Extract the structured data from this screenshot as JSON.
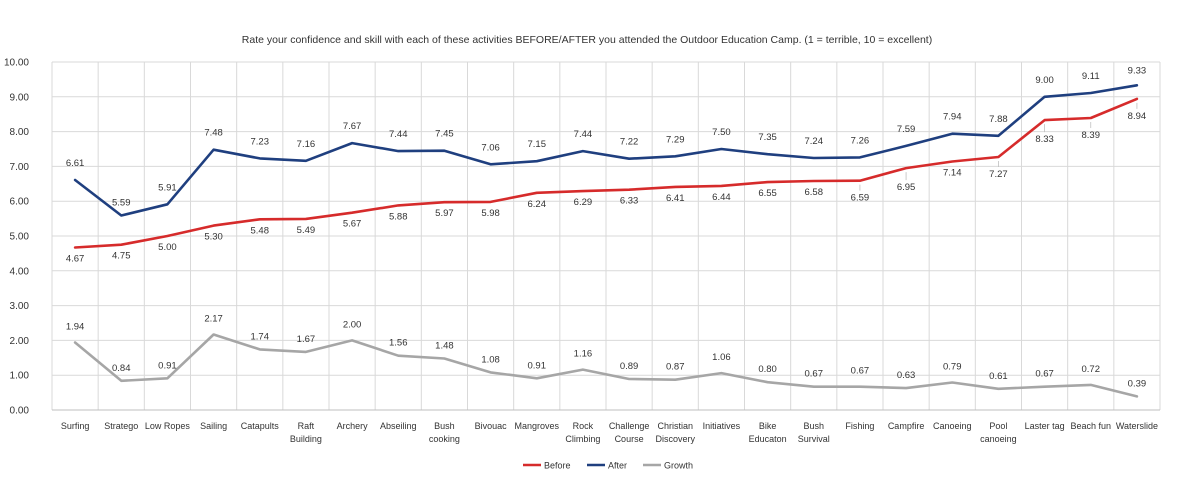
{
  "chart_data": {
    "type": "line",
    "title": "Rate your confidence and skill with each of these activities BEFORE/AFTER you attended the Outdoor Education Camp. (1 = terrible, 10 = excellent)",
    "xlabel": "",
    "ylabel": "",
    "ylim": [
      0,
      10
    ],
    "yticks": [
      "0.00",
      "1.00",
      "2.00",
      "3.00",
      "4.00",
      "5.00",
      "6.00",
      "7.00",
      "8.00",
      "9.00",
      "10.00"
    ],
    "grid": true,
    "legend_position": "bottom",
    "categories": [
      [
        "Surfing"
      ],
      [
        "Stratego"
      ],
      [
        "Low Ropes"
      ],
      [
        "Sailing"
      ],
      [
        "Catapults"
      ],
      [
        "Raft",
        "Building"
      ],
      [
        "Archery"
      ],
      [
        "Abseiling"
      ],
      [
        "Bush",
        "cooking"
      ],
      [
        "Bivouac"
      ],
      [
        "Mangroves"
      ],
      [
        "Rock",
        "Climbing"
      ],
      [
        "Challenge",
        "Course"
      ],
      [
        "Christian",
        "Discovery"
      ],
      [
        "Initiatives"
      ],
      [
        "Bike",
        "Educaton"
      ],
      [
        "Bush",
        "Survival"
      ],
      [
        "Fishing"
      ],
      [
        "Campfire"
      ],
      [
        "Canoeing"
      ],
      [
        "Pool",
        "canoeing"
      ],
      [
        "Laster tag"
      ],
      [
        "Beach fun"
      ],
      [
        "Waterslide"
      ]
    ],
    "series": [
      {
        "name": "Before",
        "color": "#d62b2b",
        "values": [
          4.67,
          4.75,
          5.0,
          5.3,
          5.48,
          5.49,
          5.67,
          5.88,
          5.97,
          5.98,
          6.24,
          6.29,
          6.33,
          6.41,
          6.44,
          6.55,
          6.58,
          6.59,
          6.95,
          7.14,
          7.27,
          8.33,
          8.39,
          8.94
        ],
        "labels": [
          "4.67",
          "4.75",
          "5.00",
          "5.30",
          "5.48",
          "5.49",
          "5.67",
          "5.88",
          "5.97",
          "5.98",
          "6.24",
          "6.29",
          "6.33",
          "6.41",
          "6.44",
          "6.55",
          "6.58",
          "6.59",
          "6.95",
          "7.14",
          "7.27",
          "8.33",
          "8.39",
          "8.94"
        ]
      },
      {
        "name": "After",
        "color": "#1f3f7f",
        "values": [
          6.61,
          5.59,
          5.91,
          7.48,
          7.23,
          7.16,
          7.67,
          7.44,
          7.45,
          7.06,
          7.15,
          7.44,
          7.22,
          7.29,
          7.5,
          7.35,
          7.24,
          7.26,
          7.59,
          7.94,
          7.88,
          9.0,
          9.11,
          9.33
        ],
        "labels": [
          "6.61",
          "5.59",
          "5.91",
          "7.48",
          "7.23",
          "7.16",
          "7.67",
          "7.44",
          "7.45",
          "7.06",
          "7.15",
          "7.44",
          "7.22",
          "7.29",
          "7.50",
          "7.35",
          "7.24",
          "7.26",
          "7.59",
          "7.94",
          "7.88",
          "9.00",
          "9.11",
          "9.33"
        ]
      },
      {
        "name": "Growth",
        "color": "#a6a6a6",
        "values": [
          1.94,
          0.84,
          0.91,
          2.17,
          1.74,
          1.67,
          2.0,
          1.56,
          1.48,
          1.08,
          0.91,
          1.16,
          0.89,
          0.87,
          1.06,
          0.8,
          0.67,
          0.67,
          0.63,
          0.79,
          0.61,
          0.67,
          0.72,
          0.39
        ],
        "labels": [
          "1.94",
          "0.84",
          "0.91",
          "2.17",
          "1.74",
          "1.67",
          "2.00",
          "1.56",
          "1.48",
          "1.08",
          "0.91",
          "1.16",
          "0.89",
          "0.87",
          "1.06",
          "0.80",
          "0.67",
          "0.67",
          "0.63",
          "0.79",
          "0.61",
          "0.67",
          "0.72",
          "0.39"
        ]
      }
    ]
  }
}
